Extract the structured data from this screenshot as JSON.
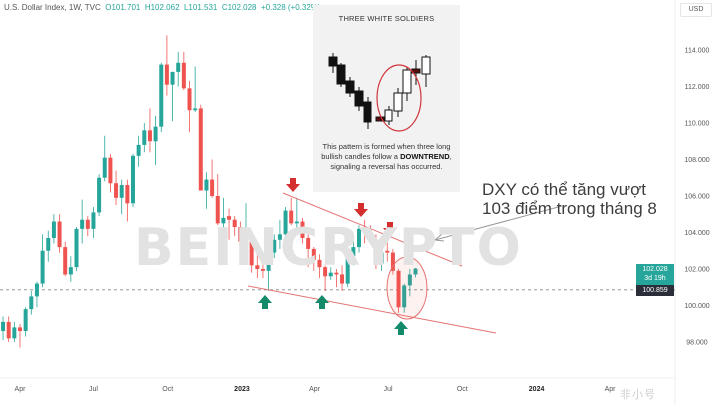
{
  "header": {
    "symbol": "U.S. Dollar Index, 1W, TVC",
    "open": "O101.701",
    "high": "H102.062",
    "low": "L101.531",
    "close": "C102.028",
    "change": "+0.328 (+0.32%)"
  },
  "currency": "USD",
  "price_labels": {
    "last": "102.028",
    "countdown": "3d 19h",
    "reference": "100.859"
  },
  "inset": {
    "title": "THREE WHITE SOLDIERS",
    "text_before": "This pattern is formed when three long bullish candles follow a ",
    "text_bold": "DOWNTREND",
    "text_after": ", signaling a reversal has occurred."
  },
  "annotation": {
    "line1": "DXY có thể tăng vượt",
    "line2": "103 điểm trong tháng 8"
  },
  "watermark": "BEINCRYPTO",
  "logo": "非小号",
  "colors": {
    "up": "#26a69a",
    "down": "#ef5350",
    "trendline": "#e57373",
    "arrow_down": "#d32f2f",
    "arrow_up": "#138a6a"
  },
  "chart_data": {
    "type": "candlestick",
    "title": "U.S. Dollar Index, 1W, TVC",
    "ylim": [
      97,
      115.5
    ],
    "y_ticks": [
      "98.000",
      "100.000",
      "102.000",
      "104.000",
      "106.000",
      "108.000",
      "110.000",
      "112.000",
      "114.000"
    ],
    "x_ticks": [
      {
        "label": "Apr",
        "date": "2022-04-01"
      },
      {
        "label": "Jul",
        "date": "2022-07-01"
      },
      {
        "label": "Oct",
        "date": "2022-10-01"
      },
      {
        "label": "2023",
        "date": "2023-01-01"
      },
      {
        "label": "Apr",
        "date": "2023-04-01"
      },
      {
        "label": "Jul",
        "date": "2023-07-01"
      },
      {
        "label": "Oct",
        "date": "2023-10-01"
      },
      {
        "label": "2024",
        "date": "2024-01-01"
      },
      {
        "label": "Apr",
        "date": "2024-04-01"
      }
    ],
    "reference_line": 100.859,
    "candles": [
      [
        "2022-03-11",
        98.6,
        99.4,
        98.1,
        99.1
      ],
      [
        "2022-03-18",
        99.1,
        99.4,
        98.0,
        98.2
      ],
      [
        "2022-03-25",
        98.2,
        99.1,
        98.0,
        98.8
      ],
      [
        "2022-04-01",
        98.8,
        99.0,
        97.7,
        98.6
      ],
      [
        "2022-04-08",
        98.6,
        99.9,
        98.3,
        99.8
      ],
      [
        "2022-04-15",
        99.8,
        100.8,
        99.5,
        100.5
      ],
      [
        "2022-04-22",
        100.5,
        101.3,
        99.9,
        101.2
      ],
      [
        "2022-04-29",
        101.2,
        103.9,
        101.0,
        103.0
      ],
      [
        "2022-05-06",
        103.0,
        104.1,
        102.4,
        103.7
      ],
      [
        "2022-05-13",
        103.7,
        105.0,
        103.4,
        104.6
      ],
      [
        "2022-05-20",
        104.6,
        105.0,
        102.9,
        103.2
      ],
      [
        "2022-05-27",
        103.2,
        103.5,
        101.6,
        101.7
      ],
      [
        "2022-06-03",
        101.7,
        102.7,
        101.3,
        102.1
      ],
      [
        "2022-06-10",
        102.1,
        104.3,
        101.9,
        104.2
      ],
      [
        "2022-06-17",
        104.2,
        105.8,
        103.4,
        104.7
      ],
      [
        "2022-06-24",
        104.7,
        104.9,
        103.8,
        104.2
      ],
      [
        "2022-07-01",
        104.2,
        105.4,
        103.7,
        105.1
      ],
      [
        "2022-07-08",
        105.1,
        107.2,
        104.9,
        107.0
      ],
      [
        "2022-07-15",
        107.0,
        109.3,
        106.8,
        108.1
      ],
      [
        "2022-07-22",
        108.1,
        108.3,
        106.2,
        106.7
      ],
      [
        "2022-07-29",
        106.7,
        107.4,
        105.5,
        105.9
      ],
      [
        "2022-08-05",
        105.9,
        106.9,
        105.0,
        106.6
      ],
      [
        "2022-08-12",
        106.6,
        106.9,
        104.6,
        105.6
      ],
      [
        "2022-08-19",
        105.6,
        108.3,
        105.4,
        108.2
      ],
      [
        "2022-08-26",
        108.2,
        109.3,
        107.6,
        108.8
      ],
      [
        "2022-09-02",
        108.8,
        110.0,
        108.4,
        109.6
      ],
      [
        "2022-09-09",
        109.6,
        110.8,
        108.4,
        109.0
      ],
      [
        "2022-09-16",
        109.0,
        110.4,
        107.7,
        109.8
      ],
      [
        "2022-09-23",
        109.8,
        113.3,
        109.5,
        113.2
      ],
      [
        "2022-09-30",
        113.2,
        114.8,
        111.5,
        112.1
      ],
      [
        "2022-10-07",
        112.1,
        112.8,
        110.1,
        112.8
      ],
      [
        "2022-10-14",
        112.8,
        113.9,
        112.0,
        113.3
      ],
      [
        "2022-10-21",
        113.3,
        113.9,
        111.8,
        111.9
      ],
      [
        "2022-10-28",
        111.9,
        112.3,
        109.5,
        110.7
      ],
      [
        "2022-11-04",
        110.7,
        113.1,
        110.6,
        110.8
      ],
      [
        "2022-11-11",
        110.8,
        111.0,
        106.3,
        106.3
      ],
      [
        "2022-11-18",
        106.3,
        107.3,
        105.3,
        106.9
      ],
      [
        "2022-11-25",
        106.9,
        108.0,
        105.9,
        106.0
      ],
      [
        "2022-12-02",
        106.0,
        107.2,
        104.4,
        104.5
      ],
      [
        "2022-12-09",
        104.5,
        105.9,
        104.1,
        104.8
      ],
      [
        "2022-12-16",
        104.9,
        105.3,
        103.6,
        104.7
      ],
      [
        "2022-12-23",
        104.7,
        104.9,
        103.8,
        104.3
      ],
      [
        "2022-12-30",
        104.3,
        104.6,
        103.4,
        103.5
      ],
      [
        "2023-01-06",
        103.5,
        105.6,
        103.4,
        103.9
      ],
      [
        "2023-01-13",
        103.9,
        103.9,
        101.8,
        102.2
      ],
      [
        "2023-01-20",
        102.2,
        102.9,
        101.5,
        102.0
      ],
      [
        "2023-01-27",
        102.0,
        102.4,
        101.5,
        101.9
      ],
      [
        "2023-02-03",
        101.9,
        103.0,
        100.8,
        102.9
      ],
      [
        "2023-02-10",
        102.9,
        103.9,
        102.6,
        103.6
      ],
      [
        "2023-02-17",
        103.6,
        104.7,
        103.1,
        103.9
      ],
      [
        "2023-02-24",
        103.9,
        105.4,
        103.6,
        105.2
      ],
      [
        "2023-03-03",
        105.2,
        105.9,
        104.4,
        104.5
      ],
      [
        "2023-03-10",
        104.5,
        105.9,
        104.2,
        104.6
      ],
      [
        "2023-03-17",
        104.6,
        104.8,
        103.4,
        103.7
      ],
      [
        "2023-03-24",
        103.7,
        103.9,
        102.1,
        103.1
      ],
      [
        "2023-03-31",
        103.1,
        103.2,
        101.9,
        102.5
      ],
      [
        "2023-04-07",
        102.5,
        102.8,
        101.5,
        102.1
      ],
      [
        "2023-04-14",
        102.1,
        102.2,
        100.8,
        101.6
      ],
      [
        "2023-04-21",
        101.6,
        102.1,
        101.4,
        101.8
      ],
      [
        "2023-04-28",
        101.8,
        102.0,
        101.0,
        101.7
      ],
      [
        "2023-05-05",
        101.7,
        102.2,
        100.8,
        101.2
      ],
      [
        "2023-05-12",
        101.2,
        102.8,
        101.0,
        102.7
      ],
      [
        "2023-05-19",
        102.7,
        103.6,
        102.2,
        103.2
      ],
      [
        "2023-05-26",
        103.2,
        104.4,
        102.9,
        104.2
      ],
      [
        "2023-06-02",
        104.2,
        104.7,
        103.4,
        104.0
      ],
      [
        "2023-06-09",
        104.0,
        104.4,
        103.4,
        103.6
      ],
      [
        "2023-06-16",
        103.6,
        103.9,
        102.0,
        102.3
      ],
      [
        "2023-06-23",
        102.3,
        103.0,
        101.9,
        102.9
      ],
      [
        "2023-06-30",
        103.0,
        103.5,
        102.4,
        102.9
      ],
      [
        "2023-07-07",
        102.9,
        103.1,
        101.7,
        101.9
      ],
      [
        "2023-07-14",
        101.9,
        102.0,
        99.6,
        99.9
      ],
      [
        "2023-07-21",
        99.9,
        101.2,
        99.6,
        101.1
      ],
      [
        "2023-07-28",
        101.1,
        102.0,
        100.5,
        101.7
      ],
      [
        "2023-08-04",
        101.701,
        102.062,
        101.531,
        102.028
      ]
    ]
  }
}
